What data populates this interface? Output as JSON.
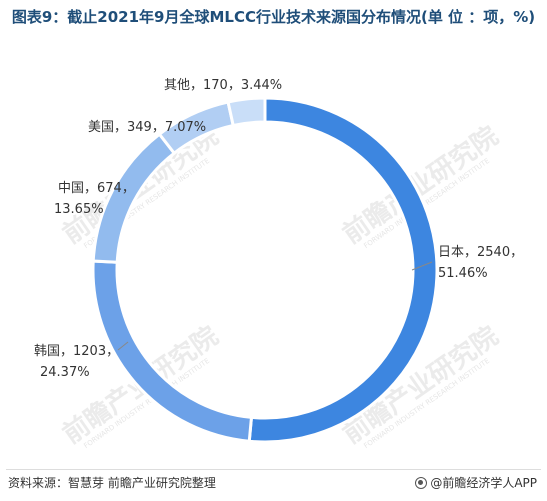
{
  "chart_data": {
    "type": "pie",
    "title": "图表9：截止2021年9月全球MLCC行业技术来源国分布情况(单 位 ：项，%)",
    "slices": [
      {
        "name": "日本",
        "value": 2540,
        "percent": 51.46,
        "label": "日本，2540，51.46%",
        "color": "#3d86e0"
      },
      {
        "name": "韩国",
        "value": 1203,
        "percent": 24.37,
        "label": "韩国，1203，24.37%",
        "color": "#6ca1e8"
      },
      {
        "name": "中国",
        "value": 674,
        "percent": 13.65,
        "label": "中国，674，13.65%",
        "color": "#92bbee"
      },
      {
        "name": "美国",
        "value": 349,
        "percent": 7.07,
        "label": "美国，349，7.07%",
        "color": "#b1cef3"
      },
      {
        "name": "其他",
        "value": 170,
        "percent": 3.44,
        "label": "其他，170，3.44%",
        "color": "#c9def8"
      }
    ]
  },
  "footer": {
    "source": "资料来源：智慧芽 前瞻产业研究院整理",
    "brand": "@前瞻经济学人APP"
  },
  "watermark": {
    "text": "前瞻产业研究院",
    "sub": "FORWARD INDUSTRY RESEARCH INSTITUTE"
  }
}
